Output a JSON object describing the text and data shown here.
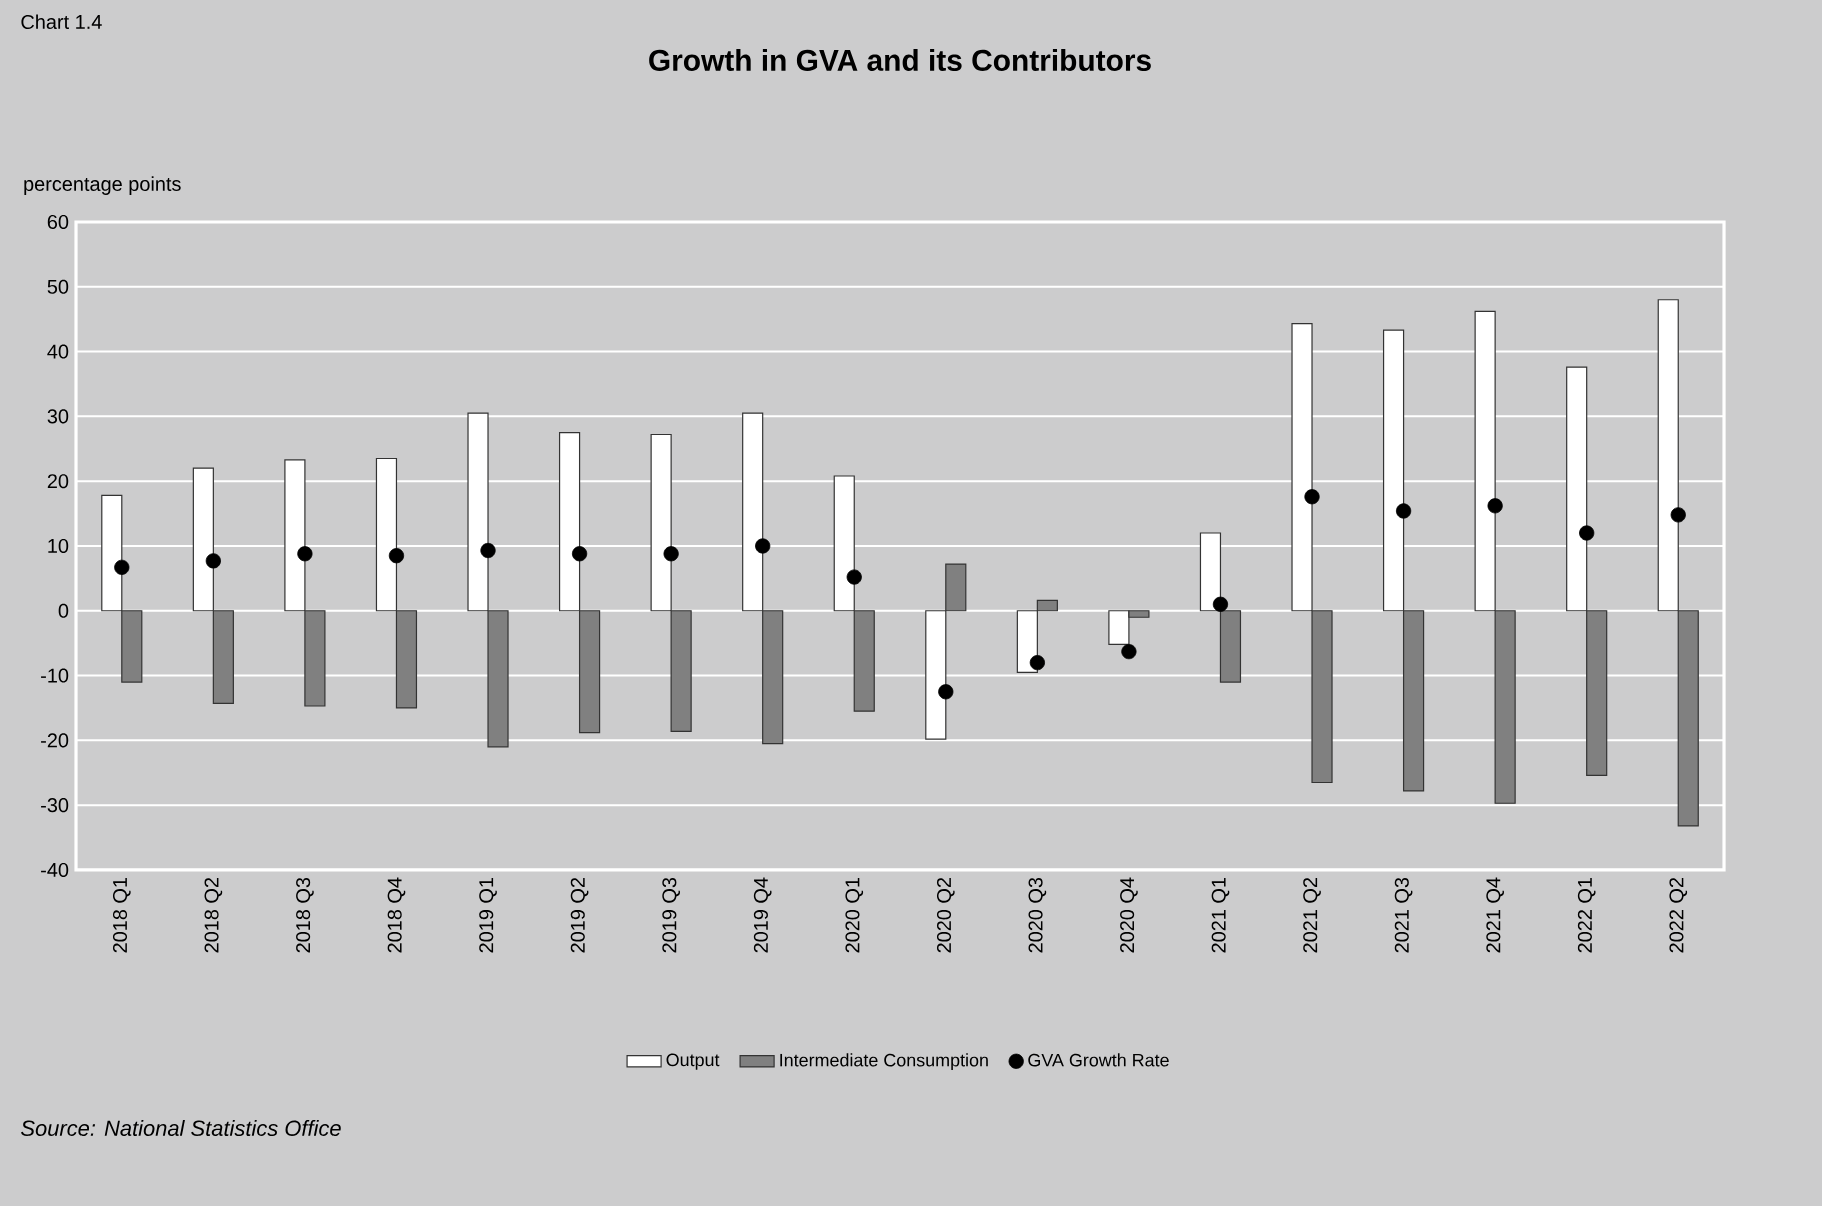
{
  "chart_data": {
    "type": "bar",
    "title": "Growth in GVA and its Contributors",
    "ylabel": "percentage points",
    "annotations": [
      "Chart 1.4",
      "Source: National Statistics Office"
    ],
    "categories": [
      "2018 Q1",
      "2018 Q2",
      "2018 Q3",
      "2018 Q4",
      "2019 Q1",
      "2019 Q2",
      "2019 Q3",
      "2019 Q4",
      "2020 Q1",
      "2020 Q2",
      "2020 Q3",
      "2020 Q4",
      "2021 Q1",
      "2021 Q2",
      "2021 Q3",
      "2021 Q4",
      "2022 Q1",
      "2022 Q2"
    ],
    "series": [
      {
        "name": "Output",
        "color": "#ffffff",
        "values": [
          17.8,
          22,
          23.3,
          23.5,
          30.5,
          27.5,
          27.2,
          30.5,
          20.8,
          -19.8,
          -9.5,
          -5.2,
          12,
          44.3,
          43.3,
          46.2,
          37.6,
          48
        ]
      },
      {
        "name": "Intermediate Consumption",
        "color": "#808080",
        "values": [
          -11,
          -14.3,
          -14.7,
          -15,
          -21,
          -18.8,
          -18.6,
          -20.5,
          -15.5,
          7.2,
          1.6,
          -1,
          -11,
          -26.5,
          -27.8,
          -29.7,
          -25.4,
          -33.2
        ]
      },
      {
        "name": "GVA Growth Rate",
        "type": "scatter",
        "color": "#000000",
        "values": [
          6.7,
          7.7,
          8.8,
          8.5,
          9.3,
          8.8,
          8.8,
          10,
          5.2,
          -12.5,
          -8,
          -6.3,
          1,
          17.6,
          15.4,
          16.2,
          12,
          14.8
        ]
      }
    ],
    "ylim": [
      -40,
      60
    ],
    "yticks": [
      -40,
      -30,
      -20,
      -10,
      0,
      10,
      20,
      30,
      40,
      50,
      60
    ],
    "grid": "y",
    "legend": "bottom",
    "marker": "circle"
  }
}
